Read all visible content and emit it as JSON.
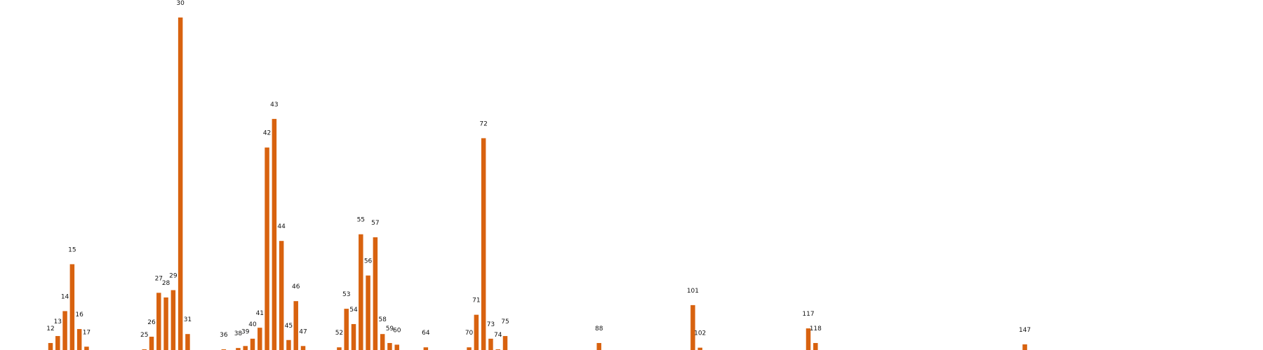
{
  "chart_data": {
    "type": "bar",
    "title": "",
    "xlabel": "",
    "ylabel": "",
    "x_range": [
      5,
      180
    ],
    "ylim": [
      0,
      1
    ],
    "grid": false,
    "axes_visible": false,
    "bar_color": "#d8620f",
    "label_color": "#111111",
    "categories": [
      "12",
      "13",
      "14",
      "15",
      "16",
      "17",
      "25",
      "26",
      "27",
      "28",
      "29",
      "30",
      "31",
      "36",
      "38",
      "39",
      "40",
      "41",
      "42",
      "43",
      "44",
      "45",
      "46",
      "47",
      "52",
      "53",
      "54",
      "55",
      "56",
      "57",
      "58",
      "59",
      "60",
      "64",
      "70",
      "71",
      "72",
      "73",
      "74",
      "75",
      "88",
      "101",
      "102",
      "117",
      "118",
      "147"
    ],
    "x": [
      12,
      13,
      14,
      15,
      16,
      17,
      25,
      26,
      27,
      28,
      29,
      30,
      31,
      36,
      38,
      39,
      40,
      41,
      42,
      43,
      44,
      45,
      46,
      47,
      52,
      53,
      54,
      55,
      56,
      57,
      58,
      59,
      60,
      64,
      70,
      71,
      72,
      73,
      74,
      75,
      88,
      101,
      102,
      117,
      118,
      147
    ],
    "values": [
      0.021,
      0.042,
      0.117,
      0.258,
      0.063,
      0.01,
      0.002,
      0.04,
      0.172,
      0.158,
      0.18,
      1.0,
      0.048,
      0.002,
      0.006,
      0.012,
      0.034,
      0.067,
      0.609,
      0.695,
      0.328,
      0.03,
      0.147,
      0.012,
      0.008,
      0.124,
      0.078,
      0.348,
      0.224,
      0.339,
      0.048,
      0.021,
      0.016,
      0.008,
      0.008,
      0.106,
      0.637,
      0.034,
      0.002,
      0.042,
      0.021,
      0.135,
      0.007,
      0.065,
      0.021,
      0.017
    ]
  }
}
